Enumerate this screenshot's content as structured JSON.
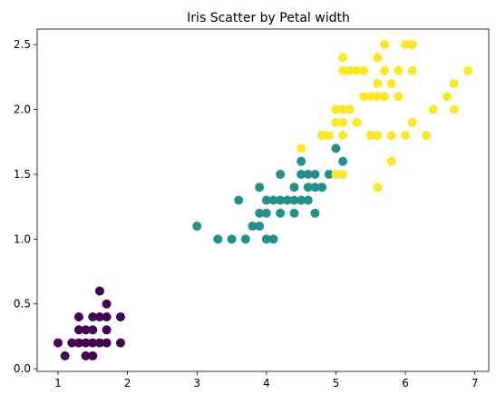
{
  "chart_data": {
    "type": "scatter",
    "title": "Iris Scatter by Petal width",
    "xlabel": "",
    "ylabel": "",
    "xlim": [
      0.7,
      7.2
    ],
    "ylim": [
      -0.02,
      2.62
    ],
    "x_ticks": [
      1,
      2,
      3,
      4,
      5,
      6,
      7
    ],
    "y_ticks": [
      0.0,
      0.5,
      1.0,
      1.5,
      2.0,
      2.5
    ],
    "x_tick_labels": [
      "1",
      "2",
      "3",
      "4",
      "5",
      "6",
      "7"
    ],
    "y_tick_labels": [
      "0.0",
      "0.5",
      "1.0",
      "1.5",
      "2.0",
      "2.5"
    ],
    "grid": false,
    "legend": "none",
    "series": [
      {
        "color": "#440154",
        "points": [
          [
            1.0,
            0.2
          ],
          [
            1.1,
            0.1
          ],
          [
            1.2,
            0.2
          ],
          [
            1.3,
            0.2
          ],
          [
            1.3,
            0.3
          ],
          [
            1.3,
            0.4
          ],
          [
            1.4,
            0.1
          ],
          [
            1.4,
            0.2
          ],
          [
            1.4,
            0.3
          ],
          [
            1.5,
            0.1
          ],
          [
            1.5,
            0.2
          ],
          [
            1.5,
            0.3
          ],
          [
            1.5,
            0.4
          ],
          [
            1.6,
            0.2
          ],
          [
            1.6,
            0.4
          ],
          [
            1.6,
            0.6
          ],
          [
            1.7,
            0.2
          ],
          [
            1.7,
            0.3
          ],
          [
            1.7,
            0.4
          ],
          [
            1.7,
            0.5
          ],
          [
            1.9,
            0.2
          ],
          [
            1.9,
            0.4
          ]
        ]
      },
      {
        "color": "#21918c",
        "points": [
          [
            3.0,
            1.1
          ],
          [
            3.3,
            1.0
          ],
          [
            3.5,
            1.0
          ],
          [
            3.6,
            1.3
          ],
          [
            3.7,
            1.0
          ],
          [
            3.8,
            1.1
          ],
          [
            3.9,
            1.1
          ],
          [
            3.9,
            1.2
          ],
          [
            3.9,
            1.4
          ],
          [
            4.0,
            1.0
          ],
          [
            4.0,
            1.2
          ],
          [
            4.0,
            1.3
          ],
          [
            4.1,
            1.0
          ],
          [
            4.1,
            1.3
          ],
          [
            4.2,
            1.2
          ],
          [
            4.2,
            1.3
          ],
          [
            4.2,
            1.5
          ],
          [
            4.3,
            1.3
          ],
          [
            4.4,
            1.2
          ],
          [
            4.4,
            1.3
          ],
          [
            4.4,
            1.4
          ],
          [
            4.5,
            1.3
          ],
          [
            4.5,
            1.5
          ],
          [
            4.5,
            1.6
          ],
          [
            4.6,
            1.3
          ],
          [
            4.6,
            1.4
          ],
          [
            4.6,
            1.5
          ],
          [
            4.7,
            1.2
          ],
          [
            4.7,
            1.4
          ],
          [
            4.7,
            1.5
          ],
          [
            4.8,
            1.4
          ],
          [
            4.8,
            1.8
          ],
          [
            4.9,
            1.5
          ],
          [
            5.0,
            1.7
          ],
          [
            5.1,
            1.6
          ]
        ]
      },
      {
        "color": "#fde725",
        "points": [
          [
            4.5,
            1.7
          ],
          [
            4.8,
            1.8
          ],
          [
            4.9,
            1.8
          ],
          [
            5.0,
            1.5
          ],
          [
            5.0,
            1.9
          ],
          [
            5.0,
            2.0
          ],
          [
            5.1,
            1.5
          ],
          [
            5.1,
            1.8
          ],
          [
            5.1,
            1.9
          ],
          [
            5.1,
            2.0
          ],
          [
            5.1,
            2.3
          ],
          [
            5.1,
            2.4
          ],
          [
            5.2,
            2.0
          ],
          [
            5.2,
            2.3
          ],
          [
            5.3,
            1.9
          ],
          [
            5.3,
            2.3
          ],
          [
            5.4,
            2.1
          ],
          [
            5.4,
            2.3
          ],
          [
            5.5,
            1.8
          ],
          [
            5.5,
            2.1
          ],
          [
            5.6,
            1.4
          ],
          [
            5.6,
            1.8
          ],
          [
            5.6,
            2.1
          ],
          [
            5.6,
            2.2
          ],
          [
            5.6,
            2.4
          ],
          [
            5.7,
            2.1
          ],
          [
            5.7,
            2.3
          ],
          [
            5.7,
            2.5
          ],
          [
            5.8,
            1.6
          ],
          [
            5.8,
            1.8
          ],
          [
            5.8,
            2.2
          ],
          [
            5.9,
            2.1
          ],
          [
            5.9,
            2.3
          ],
          [
            6.0,
            1.8
          ],
          [
            6.0,
            2.5
          ],
          [
            6.1,
            1.9
          ],
          [
            6.1,
            2.3
          ],
          [
            6.1,
            2.5
          ],
          [
            6.3,
            1.8
          ],
          [
            6.4,
            2.0
          ],
          [
            6.6,
            2.1
          ],
          [
            6.7,
            2.0
          ],
          [
            6.7,
            2.2
          ],
          [
            6.9,
            2.3
          ]
        ]
      }
    ]
  }
}
